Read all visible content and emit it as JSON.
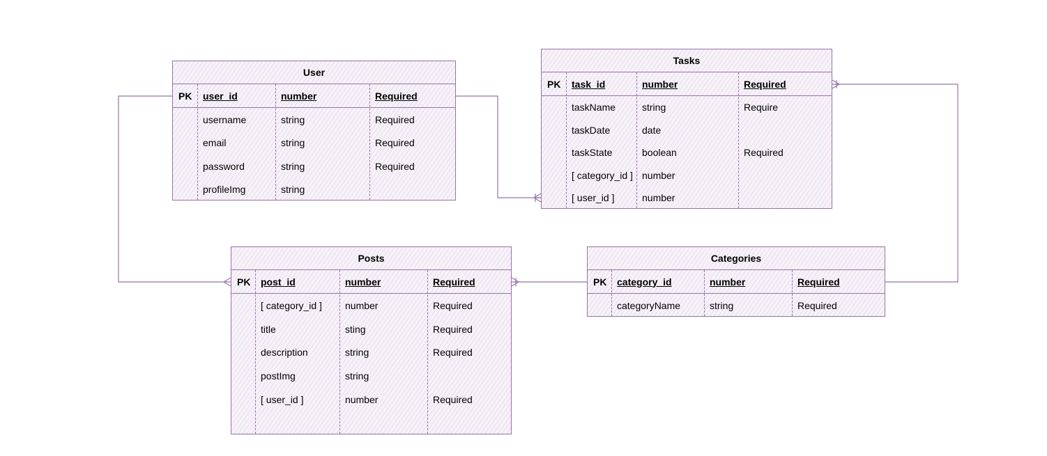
{
  "diagram": {
    "colors": {
      "stroke": "#9673a6",
      "fill": "#f7f2f9",
      "text": "#000000"
    },
    "entities": [
      {
        "id": "user",
        "title": "User",
        "pk": {
          "key": "PK",
          "name": "user_id",
          "type": "number",
          "constraint": "Required"
        },
        "fields": [
          {
            "name": "username",
            "type": "string",
            "constraint": "Required"
          },
          {
            "name": "email",
            "type": "string",
            "constraint": "Required"
          },
          {
            "name": "password",
            "type": "string",
            "constraint": "Required"
          },
          {
            "name": "profileImg",
            "type": "string",
            "constraint": ""
          }
        ]
      },
      {
        "id": "tasks",
        "title": "Tasks",
        "pk": {
          "key": "PK",
          "name": "task_id",
          "type": "number",
          "constraint": "Required"
        },
        "fields": [
          {
            "name": "taskName",
            "type": "string",
            "constraint": "Require"
          },
          {
            "name": "taskDate",
            "type": "date",
            "constraint": ""
          },
          {
            "name": "taskState",
            "type": "boolean",
            "constraint": "Required"
          },
          {
            "name": "[ category_id ]",
            "type": "number",
            "constraint": ""
          },
          {
            "name": "[ user_id ]",
            "type": "number",
            "constraint": ""
          }
        ]
      },
      {
        "id": "posts",
        "title": "Posts",
        "pk": {
          "key": "PK",
          "name": "post_id",
          "type": "number",
          "constraint": "Required"
        },
        "fields": [
          {
            "name": "[ category_id ]",
            "type": "number",
            "constraint": "Required"
          },
          {
            "name": "title",
            "type": "sting",
            "constraint": "Required"
          },
          {
            "name": "description",
            "type": "string",
            "constraint": "Required"
          },
          {
            "name": "postImg",
            "type": "string",
            "constraint": ""
          },
          {
            "name": "[ user_id ]",
            "type": "number",
            "constraint": "Required"
          }
        ]
      },
      {
        "id": "categories",
        "title": "Categories",
        "pk": {
          "key": "PK",
          "name": "category_id",
          "type": "number",
          "constraint": "Required"
        },
        "fields": [
          {
            "name": "categoryName",
            "type": "string",
            "constraint": "Required"
          }
        ]
      }
    ],
    "relationships": [
      {
        "from": "user.user_id",
        "to": "tasks.user_id",
        "cardinality": "one-to-many"
      },
      {
        "from": "user.user_id",
        "to": "posts.user_id",
        "cardinality": "one-to-many"
      },
      {
        "from": "categories.category_id",
        "to": "posts.category_id",
        "cardinality": "one-to-many"
      },
      {
        "from": "categories.category_id",
        "to": "tasks.category_id",
        "cardinality": "one-to-many"
      }
    ]
  }
}
